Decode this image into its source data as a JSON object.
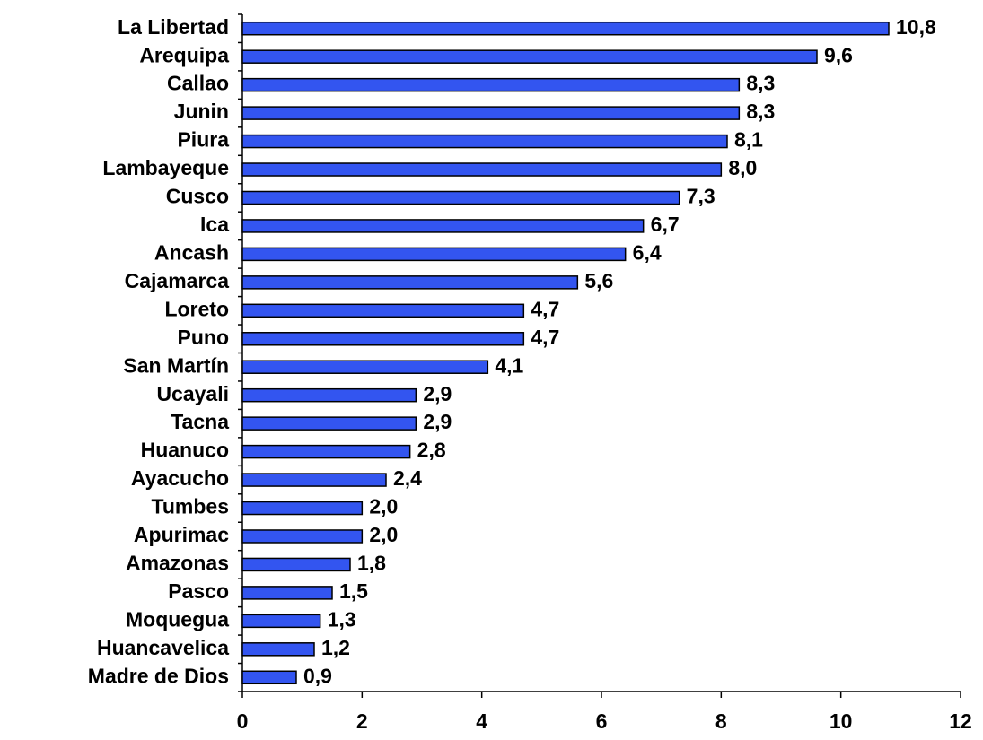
{
  "chart_data": {
    "type": "bar",
    "orientation": "horizontal",
    "categories": [
      "La Libertad",
      "Arequipa",
      "Callao",
      "Junin",
      "Piura",
      "Lambayeque",
      "Cusco",
      "Ica",
      "Ancash",
      "Cajamarca",
      "Loreto",
      "Puno",
      "San Martín",
      "Ucayali",
      "Tacna",
      "Huanuco",
      "Ayacucho",
      "Tumbes",
      "Apurimac",
      "Amazonas",
      "Pasco",
      "Moquegua",
      "Huancavelica",
      "Madre de Dios"
    ],
    "values": [
      10.8,
      9.6,
      8.3,
      8.3,
      8.1,
      8.0,
      7.3,
      6.7,
      6.4,
      5.6,
      4.7,
      4.7,
      4.1,
      2.9,
      2.9,
      2.8,
      2.4,
      2.0,
      2.0,
      1.8,
      1.5,
      1.3,
      1.2,
      0.9
    ],
    "value_labels": [
      "10,8",
      "9,6",
      "8,3",
      "8,3",
      "8,1",
      "8,0",
      "7,3",
      "6,7",
      "6,4",
      "5,6",
      "4,7",
      "4,7",
      "4,1",
      "2,9",
      "2,9",
      "2,8",
      "2,4",
      "2,0",
      "2,0",
      "1,8",
      "1,5",
      "1,3",
      "1,2",
      "0,9"
    ],
    "color": "#3355f0",
    "xlim": [
      0,
      12
    ],
    "xticks": [
      0,
      2,
      4,
      6,
      8,
      10,
      12
    ]
  }
}
